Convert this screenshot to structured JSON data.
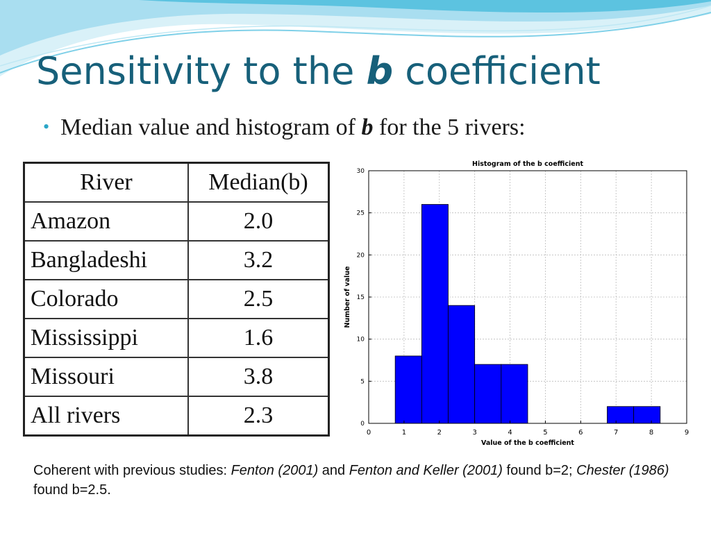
{
  "slide": {
    "title_pre": "Sensitivity to the ",
    "title_b": "b",
    "title_post": " coefficient",
    "bullet_pre": "Median value and histogram of ",
    "bullet_b": "b",
    "bullet_post": " for the 5 rivers:"
  },
  "table": {
    "headers": [
      "River",
      "Median(b)"
    ],
    "rows": [
      {
        "river": "Amazon",
        "median": "2.0"
      },
      {
        "river": "Bangladeshi",
        "median": "3.2"
      },
      {
        "river": "Colorado",
        "median": "2.5"
      },
      {
        "river": "Mississippi",
        "median": "1.6"
      },
      {
        "river": "Missouri",
        "median": "3.8"
      },
      {
        "river": "All rivers",
        "median": "2.3"
      }
    ]
  },
  "footnote": {
    "t1": "Coherent with previous studies: ",
    "c1": "Fenton (2001)",
    "t2": " and ",
    "c2": "Fenton and Keller (2001)",
    "t3": " found b=2; ",
    "c3": "Chester (1986)",
    "t4": " found b=2.5."
  },
  "colors": {
    "title": "#17607a",
    "bullet_dot": "#2ba6c7",
    "bar_fill": "#0000ff",
    "wave": "#5cc3e0"
  },
  "chart_data": {
    "type": "bar",
    "title": "Histogram of the b coefficient",
    "xlabel": "Value of the b coefficient",
    "ylabel": "Number of value",
    "xlim": [
      0,
      9
    ],
    "ylim": [
      0,
      30
    ],
    "xticks": [
      0,
      1,
      2,
      3,
      4,
      5,
      6,
      7,
      8,
      9
    ],
    "yticks": [
      0,
      5,
      10,
      15,
      20,
      25,
      30
    ],
    "grid": true,
    "bins": [
      {
        "x0": 0.75,
        "x1": 1.5,
        "value": 8
      },
      {
        "x0": 1.5,
        "x1": 2.25,
        "value": 26
      },
      {
        "x0": 2.25,
        "x1": 3.0,
        "value": 14
      },
      {
        "x0": 3.0,
        "x1": 3.75,
        "value": 7
      },
      {
        "x0": 3.75,
        "x1": 4.5,
        "value": 7
      },
      {
        "x0": 4.5,
        "x1": 5.25,
        "value": 0
      },
      {
        "x0": 5.25,
        "x1": 6.0,
        "value": 0
      },
      {
        "x0": 6.0,
        "x1": 6.75,
        "value": 0
      },
      {
        "x0": 6.75,
        "x1": 7.5,
        "value": 2
      },
      {
        "x0": 7.5,
        "x1": 8.25,
        "value": 2
      }
    ]
  }
}
